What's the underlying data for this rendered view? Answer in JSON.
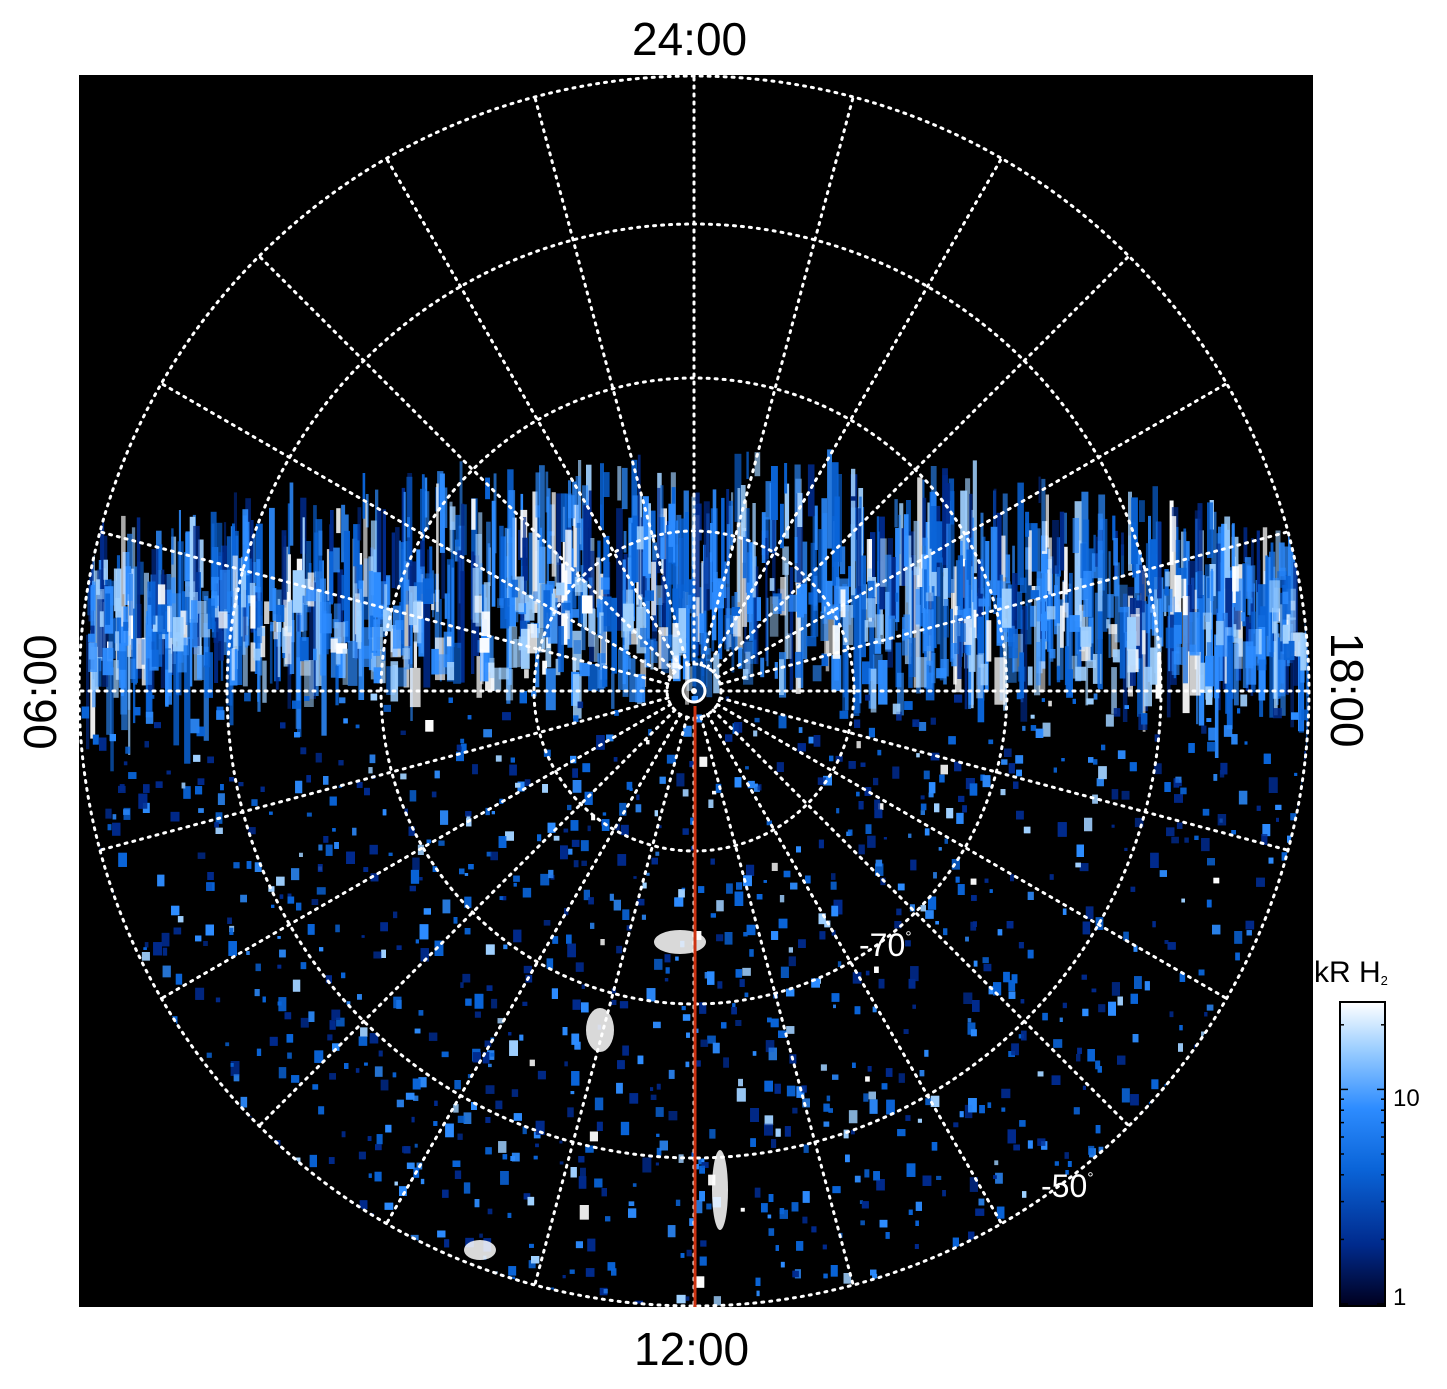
{
  "figure": {
    "local_time_labels": {
      "top": "24:00",
      "bottom": "12:00",
      "left": "06:00",
      "right": "18:00"
    },
    "latitude_labels": {
      "inner": "-70",
      "outer": "-50",
      "degree_symbol": "°"
    },
    "colorbar": {
      "title": "kR H",
      "title_subscript": "2",
      "tick_labels": [
        "10",
        "1"
      ],
      "scale": "log",
      "colors": [
        "#00001e",
        "#002a8c",
        "#0a64d8",
        "#2d8cff",
        "#9fd0ff",
        "#ffffff"
      ]
    },
    "colors": {
      "background": "#000000",
      "grid": "#ffffff",
      "meridian_line": "#cc3311"
    },
    "icons": {
      "pole_marker": "circle-marker-icon"
    }
  }
}
